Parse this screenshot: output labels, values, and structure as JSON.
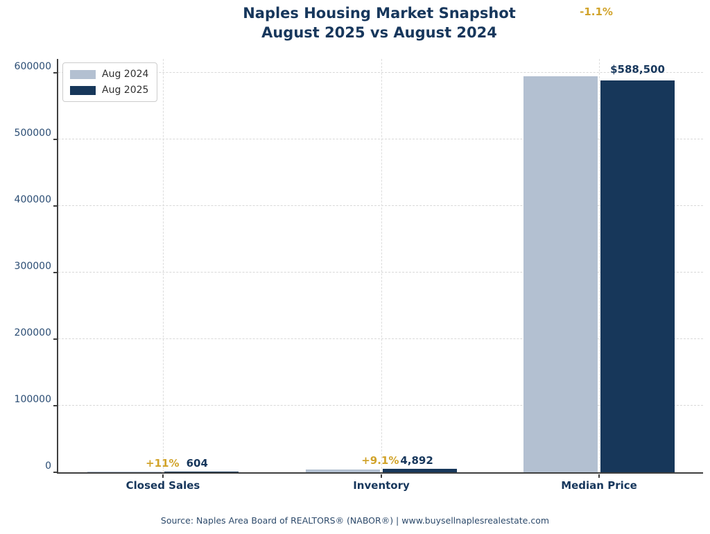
{
  "header": {
    "title_line1": "Naples Housing Market Snapshot",
    "title_line2": "August 2025 vs August 2024"
  },
  "chart_data": {
    "type": "bar",
    "categories": [
      "Closed Sales",
      "Inventory",
      "Median Price"
    ],
    "series": [
      {
        "name": "Aug 2024",
        "color": "#b3c0d1",
        "values": [
          544,
          4484,
          595000
        ]
      },
      {
        "name": "Aug 2025",
        "color": "#17375a",
        "values": [
          604,
          4892,
          588500
        ]
      }
    ],
    "y_ticks": [
      0,
      100000,
      200000,
      300000,
      400000,
      500000,
      600000
    ],
    "ylim": [
      0,
      621000
    ],
    "xlabel": "",
    "ylabel": "",
    "grid": "dashed, horizontal at y ticks and vertical at category centers",
    "legend_position": "upper left",
    "annotations": [
      {
        "category": "Closed Sales",
        "pct_change": "+11%",
        "value_label": "604"
      },
      {
        "category": "Inventory",
        "pct_change": "+9.1%",
        "value_label": "4,892"
      },
      {
        "category": "Median Price",
        "pct_change": "-1.1%",
        "value_label": "$588,500"
      }
    ],
    "colors": {
      "navy": "#17375c",
      "gold": "#d1a32a",
      "bar_2024": "#b3c0d1",
      "bar_2025": "#17375a"
    }
  },
  "footer": {
    "source": "Source: Naples Area Board of REALTORS® (NABOR®) | www.buysellnaplesrealestate.com"
  }
}
